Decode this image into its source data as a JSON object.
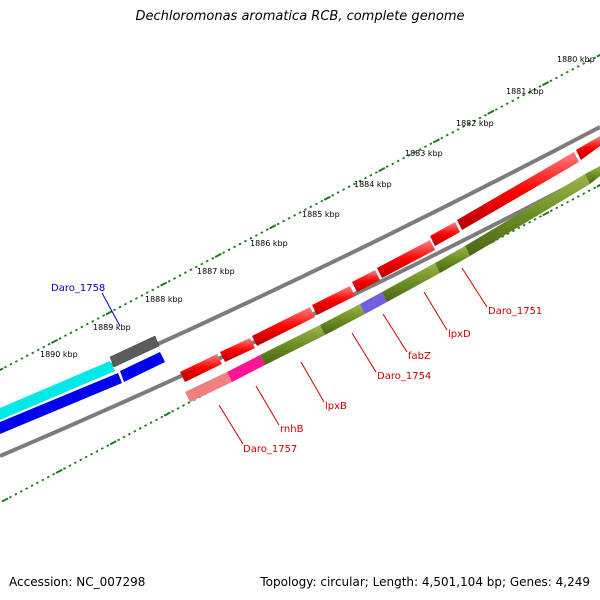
{
  "title": "Dechloromonas aromatica RCB, complete genome",
  "footer": {
    "accession": "Accession: NC_007298",
    "summary": "Topology: circular; Length: 4,501,104 bp; Genes: 4,249"
  },
  "scale_labels": [
    "1880 kbp",
    "1881 kbp",
    "1882 kbp",
    "1883 kbp",
    "1884 kbp",
    "1885 kbp",
    "1886 kbp",
    "1887 kbp",
    "1888 kbp",
    "1889 kbp",
    "1890 kbp"
  ],
  "gene_labels": [
    {
      "name": "Daro_1758",
      "color": "#0000cc"
    },
    {
      "name": "Daro_1751",
      "color": "#cc0000"
    },
    {
      "name": "lpxD",
      "color": "#cc0000"
    },
    {
      "name": "fabZ",
      "color": "#cc0000"
    },
    {
      "name": "Daro_1754",
      "color": "#cc0000"
    },
    {
      "name": "lpxB",
      "color": "#cc0000"
    },
    {
      "name": "rnhB",
      "color": "#cc0000"
    },
    {
      "name": "Daro_1757",
      "color": "#cc0000"
    }
  ],
  "colors": {
    "backbone": "#8a8a8a",
    "ticks": "#1f7a1f",
    "red_gene": "#ff0000",
    "olive_gene": "#6b8e23",
    "cyan_gene": "#00e5e5",
    "blue_gene": "#0000ff",
    "gray_gene": "#606060",
    "pink_gene": "#f08080",
    "magenta_gene": "#ff1493",
    "purple_gene": "#7b68ee"
  }
}
